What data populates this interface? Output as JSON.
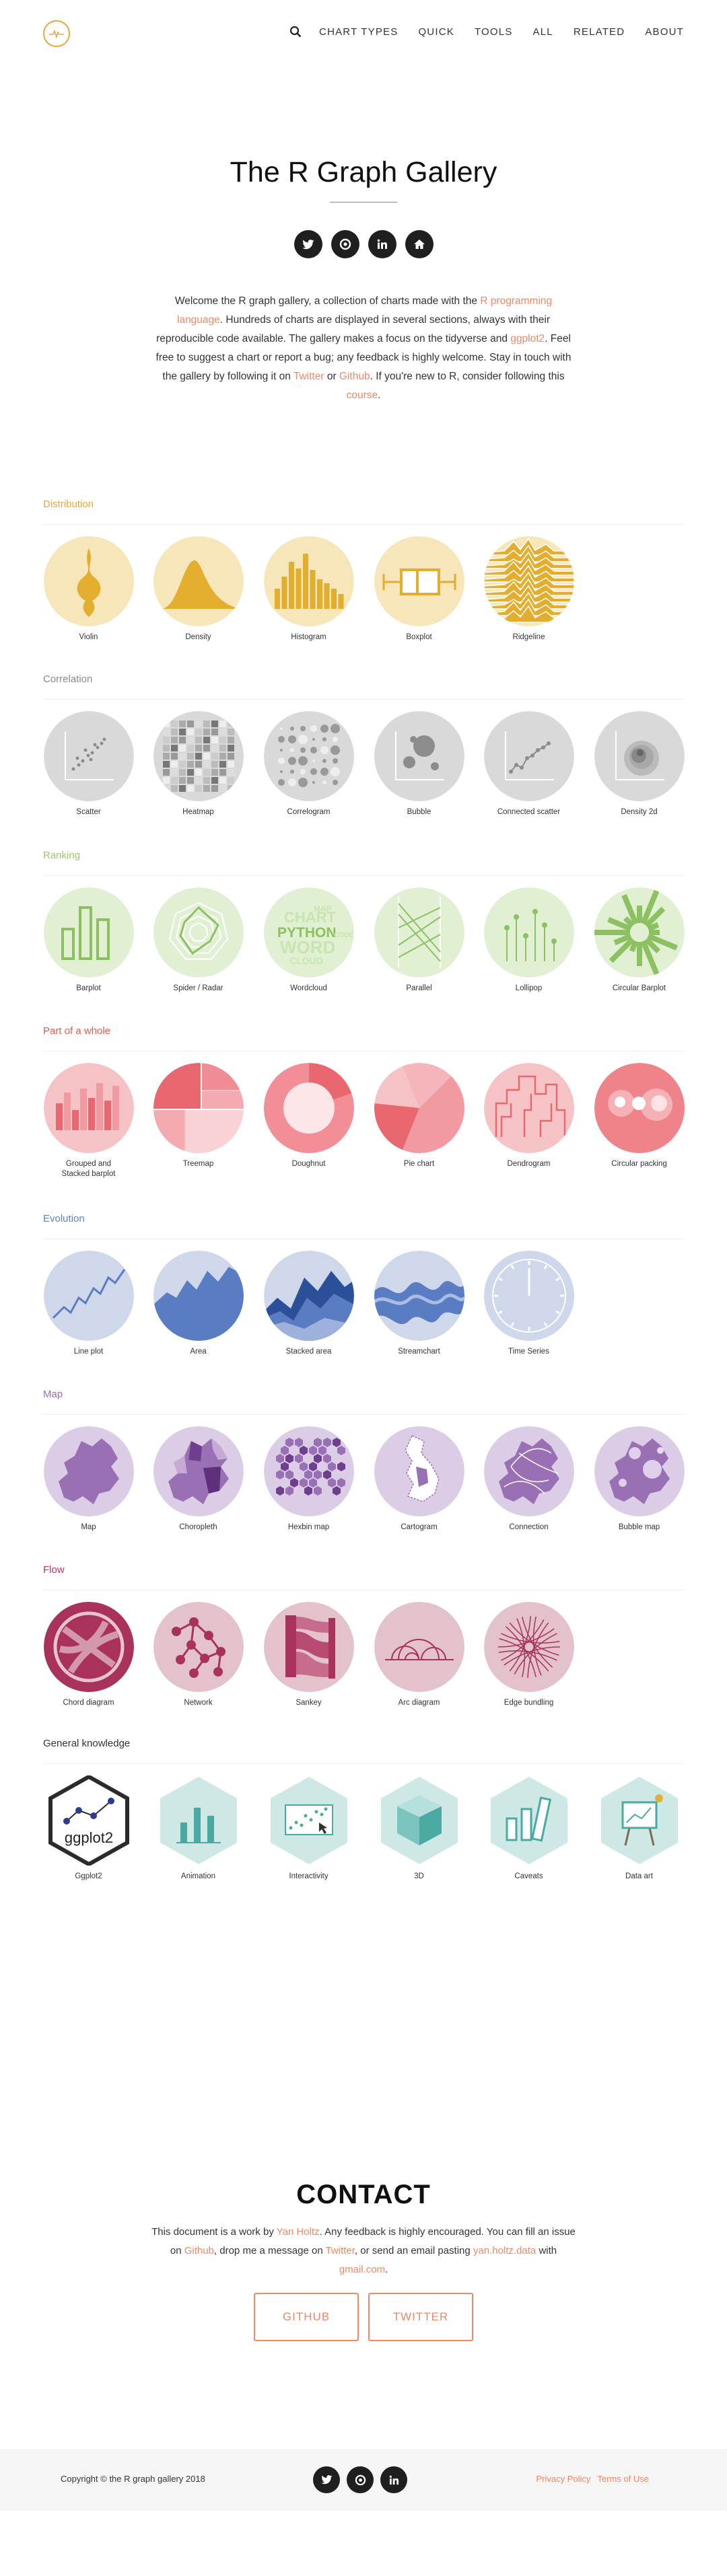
{
  "nav": {
    "links": [
      "CHART TYPES",
      "QUICK",
      "TOOLS",
      "ALL",
      "RELATED",
      "ABOUT"
    ]
  },
  "hero": {
    "title": "The R Graph Gallery",
    "intro": [
      {
        "t": "Welcome the R graph gallery, a collection of charts made with the "
      },
      {
        "t": "R programming language",
        "link": true
      },
      {
        "t": ". Hundreds of charts are displayed in several sections, always with their reproducible code available. The gallery makes a focus on the tidyverse and "
      },
      {
        "t": "ggplot2",
        "link": true
      },
      {
        "t": ". Feel free to suggest a chart or report a bug; any feedback is highly welcome. Stay in touch with the gallery by following it on "
      },
      {
        "t": "Twitter",
        "link": true
      },
      {
        "t": " or "
      },
      {
        "t": "Github",
        "link": true
      },
      {
        "t": ". If you're new to R, consider following this "
      },
      {
        "t": "course",
        "link": true
      },
      {
        "t": "."
      }
    ]
  },
  "sections": [
    {
      "title": "Distribution",
      "color": "#e9a53b",
      "bg": "#f6e6b9",
      "fg": "#e3ae2e",
      "items": [
        "Violin",
        "Density",
        "Histogram",
        "Boxplot",
        "Ridgeline"
      ]
    },
    {
      "title": "Correlation",
      "color": "#8a8a8a",
      "bg": "#d9d9d9",
      "fg": "#8c8c8c",
      "items": [
        "Scatter",
        "Heatmap",
        "Correlogram",
        "Bubble",
        "Connected scatter",
        "Density 2d"
      ]
    },
    {
      "title": "Ranking",
      "color": "#9bc96b",
      "bg": "#e1f0d2",
      "fg": "#8cc061",
      "items": [
        "Barplot",
        "Spider / Radar",
        "Wordcloud",
        "Parallel",
        "Lollipop",
        "Circular Barplot"
      ]
    },
    {
      "title": "Part of a whole",
      "color": "#e9584c",
      "bg": "#f5c3c6",
      "fg": "#e96870",
      "items": [
        "Grouped and Stacked barplot",
        "Treemap",
        "Doughnut",
        "Pie chart",
        "Dendrogram",
        "Circular packing"
      ]
    },
    {
      "title": "Evolution",
      "color": "#5b84c4",
      "bg": "#cfd8eb",
      "fg": "#5a7cc2",
      "items": [
        "Line plot",
        "Area",
        "Stacked area",
        "Streamchart",
        "Time Series"
      ]
    },
    {
      "title": "Map",
      "color": "#9a6fb0",
      "bg": "#dccde6",
      "fg": "#9a70b5",
      "items": [
        "Map",
        "Choropleth",
        "Hexbin map",
        "Cartogram",
        "Connection",
        "Bubble map"
      ]
    },
    {
      "title": "Flow",
      "color": "#c2325c",
      "bg": "#e3c2cb",
      "fg": "#a8325c",
      "items": [
        "Chord diagram",
        "Network",
        "Sankey",
        "Arc diagram",
        "Edge bundling"
      ]
    },
    {
      "title": "General knowledge",
      "color": "#333333",
      "bg": "#cde8e5",
      "fg": "#4aa9a3",
      "items": [
        "Ggplot2",
        "Animation",
        "Interactivity",
        "3D",
        "Caveats",
        "Data art"
      ]
    }
  ],
  "thumb_text": {
    "ggplot2": "ggplot2",
    "wordcloud": [
      "CHART",
      "PYTHON",
      "WORD",
      "CLOUD",
      "MAP",
      "CODE"
    ]
  },
  "contact": {
    "title": "CONTACT",
    "text": [
      {
        "t": "This document is a work by "
      },
      {
        "t": "Yan Holtz",
        "link": true
      },
      {
        "t": ". Any feedback is highly encouraged. You can fill an issue on "
      },
      {
        "t": "Github",
        "link": true
      },
      {
        "t": ", drop me a message on "
      },
      {
        "t": "Twitter",
        "link": true
      },
      {
        "t": ", or send an email pasting "
      },
      {
        "t": "yan.holtz.data",
        "link": true
      },
      {
        "t": " with "
      },
      {
        "t": "gmail.com",
        "link": true
      },
      {
        "t": "."
      }
    ],
    "buttons": [
      "GITHUB",
      "TWITTER"
    ]
  },
  "footer": {
    "copyright": "Copyright © the R graph gallery 2018",
    "privacy": "Privacy Policy",
    "terms": "Terms of Use"
  }
}
